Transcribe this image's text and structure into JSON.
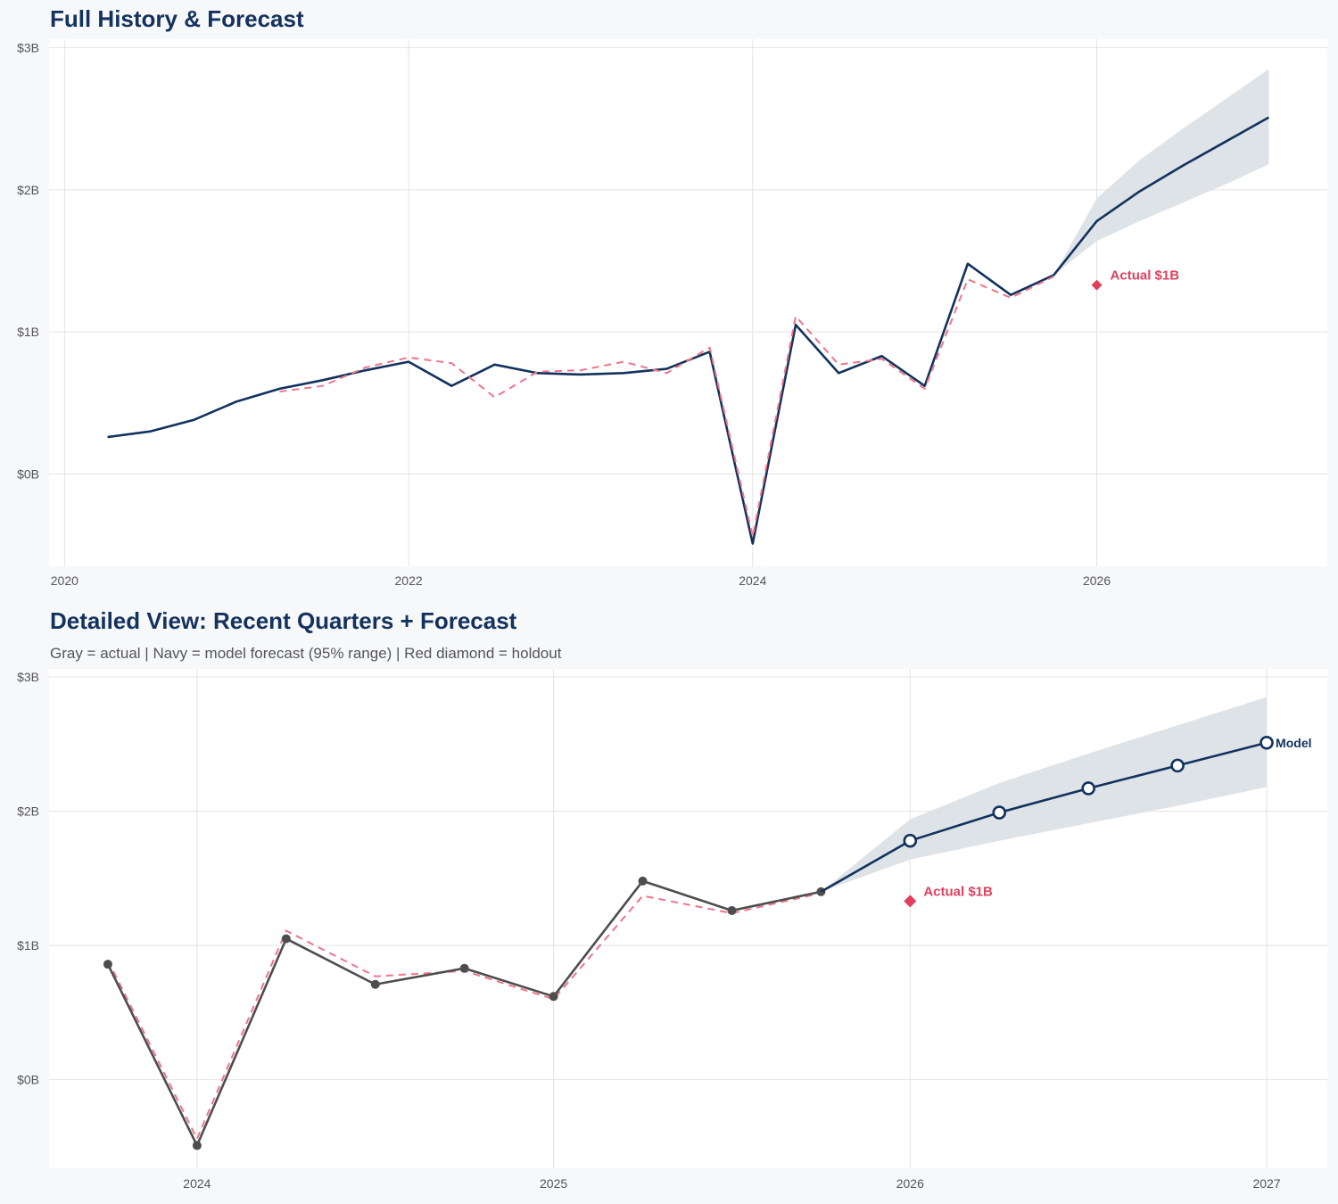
{
  "colors": {
    "navy": "#12325e",
    "red_dashed": "#f07488",
    "band": "#dce1e7",
    "gray_actual": "#4d4d4d",
    "holdout": "#e0405e",
    "grid": "#e3e3e3"
  },
  "chart_data": [
    {
      "type": "line",
      "title": "Full History & Forecast",
      "xlim": [
        2019.91,
        2027.34
      ],
      "ylim": [
        -0.65,
        3.06
      ],
      "xticks": [
        2020,
        2022,
        2024,
        2026
      ],
      "xtick_labels": [
        "2020",
        "2022",
        "2024",
        "2026"
      ],
      "yticks": [
        0,
        1,
        2,
        3
      ],
      "ytick_labels": [
        "$0B",
        "$1B",
        "$2B",
        "$3B"
      ],
      "grid": true,
      "series": [
        {
          "role": "actual",
          "style": "solid-navy",
          "x": [
            2020.25,
            2020.5,
            2020.75,
            2021,
            2021.25,
            2021.5,
            2021.75,
            2022,
            2022.25,
            2022.5,
            2022.75,
            2023,
            2023.25,
            2023.5,
            2023.75,
            2024,
            2024.25,
            2024.5,
            2024.75,
            2025,
            2025.25,
            2025.5,
            2025.75
          ],
          "y": [
            0.26,
            0.3,
            0.38,
            0.51,
            0.6,
            0.66,
            0.73,
            0.79,
            0.62,
            0.77,
            0.71,
            0.7,
            0.71,
            0.74,
            0.86,
            -0.49,
            1.05,
            0.71,
            0.83,
            0.62,
            1.48,
            1.26,
            1.4
          ]
        },
        {
          "role": "fitted",
          "style": "dashed-red",
          "x": [
            2021.25,
            2021.5,
            2021.75,
            2022,
            2022.25,
            2022.5,
            2022.75,
            2023,
            2023.25,
            2023.5,
            2023.75,
            2024,
            2024.25,
            2024.5,
            2024.75,
            2025,
            2025.25,
            2025.5,
            2025.75
          ],
          "y": [
            0.58,
            0.62,
            0.75,
            0.82,
            0.78,
            0.54,
            0.72,
            0.73,
            0.79,
            0.71,
            0.89,
            -0.44,
            1.11,
            0.77,
            0.81,
            0.6,
            1.37,
            1.24,
            1.39
          ]
        },
        {
          "role": "forecast",
          "style": "solid-navy",
          "x": [
            2025.75,
            2026,
            2026.25,
            2026.5,
            2026.75,
            2027
          ],
          "y": [
            1.4,
            1.78,
            1.99,
            2.17,
            2.34,
            2.51
          ],
          "lower": [
            1.4,
            1.64,
            1.78,
            1.91,
            2.04,
            2.18
          ],
          "upper": [
            1.4,
            1.94,
            2.21,
            2.43,
            2.64,
            2.85
          ]
        }
      ],
      "holdout": {
        "x": 2026,
        "y": 1.33,
        "label": "Actual $1B"
      }
    },
    {
      "type": "line",
      "title": "Detailed View: Recent Quarters + Forecast",
      "subtitle": "Gray = actual  |  Navy = model forecast (95% range)  |  Red diamond = holdout",
      "xlim": [
        2023.585,
        2027.17
      ],
      "ylim": [
        -0.66,
        3.06
      ],
      "xticks": [
        2024,
        2025,
        2026,
        2027
      ],
      "xtick_labels": [
        "2024",
        "2025",
        "2026",
        "2027"
      ],
      "yticks": [
        0,
        1,
        2,
        3
      ],
      "ytick_labels": [
        "$0B",
        "$1B",
        "$2B",
        "$3B"
      ],
      "grid": true,
      "series": [
        {
          "role": "fitted",
          "style": "dashed-red",
          "x": [
            2023.75,
            2024,
            2024.25,
            2024.5,
            2024.75,
            2025,
            2025.25,
            2025.5,
            2025.75
          ],
          "y": [
            0.89,
            -0.44,
            1.11,
            0.77,
            0.81,
            0.6,
            1.37,
            1.24,
            1.39
          ]
        },
        {
          "role": "actual",
          "style": "gray-markers",
          "x": [
            2023.75,
            2024,
            2024.25,
            2024.5,
            2024.75,
            2025,
            2025.25,
            2025.5,
            2025.75
          ],
          "y": [
            0.86,
            -0.49,
            1.05,
            0.71,
            0.83,
            0.62,
            1.48,
            1.26,
            1.4
          ]
        },
        {
          "role": "forecast",
          "style": "navy-open-markers",
          "x": [
            2025.75,
            2026,
            2026.25,
            2026.5,
            2026.75,
            2027
          ],
          "y": [
            1.4,
            1.78,
            1.99,
            2.17,
            2.34,
            2.51
          ],
          "lower": [
            1.4,
            1.64,
            1.78,
            1.91,
            2.04,
            2.18
          ],
          "upper": [
            1.4,
            1.94,
            2.21,
            2.43,
            2.64,
            2.85
          ],
          "end_label": "Model"
        }
      ],
      "holdout": {
        "x": 2026,
        "y": 1.33,
        "label": "Actual $1B"
      }
    }
  ]
}
